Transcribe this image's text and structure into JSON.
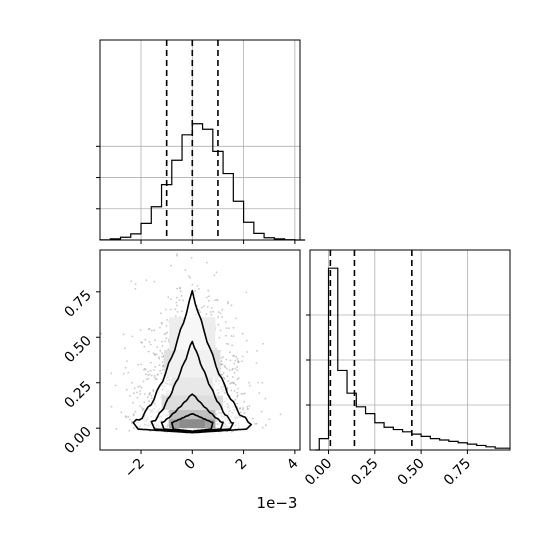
{
  "chart_data": [
    {
      "type": "histogram",
      "panel": "top-left",
      "variable": "x",
      "x_scale_label": "1e−3",
      "xlim": [
        -3.6,
        4.2
      ],
      "x_ticks": [
        -2,
        0,
        2,
        4
      ],
      "quantile_lines": [
        -1.0,
        0.0,
        1.0
      ],
      "grid": true,
      "bins_left": [
        -3.6,
        -3.2,
        -2.8,
        -2.4,
        -2.0,
        -1.6,
        -1.2,
        -0.8,
        -0.4,
        0.0,
        0.4,
        0.8,
        1.2,
        1.6,
        2.0,
        2.4,
        2.8,
        3.2,
        3.6,
        4.0
      ],
      "bin_width": 0.4,
      "counts": [
        0.1,
        1,
        2.5,
        5.5,
        15,
        30,
        50,
        72,
        95,
        105,
        100,
        80,
        60,
        35,
        16,
        6,
        2,
        1,
        0.3,
        0
      ]
    },
    {
      "type": "histogram",
      "panel": "bottom-right",
      "variable": "y",
      "xlim": [
        -0.1,
        0.98
      ],
      "x_ticks": [
        0.0,
        0.25,
        0.5,
        0.75
      ],
      "x_tick_labels": [
        "0.00",
        "0.25",
        "0.50",
        "0.75"
      ],
      "quantile_lines": [
        0.01,
        0.14,
        0.45
      ],
      "grid": true,
      "bins_left": [
        -0.05,
        0.0,
        0.05,
        0.1,
        0.15,
        0.2,
        0.25,
        0.3,
        0.35,
        0.4,
        0.45,
        0.5,
        0.55,
        0.6,
        0.65,
        0.7,
        0.75,
        0.8,
        0.85,
        0.9
      ],
      "bin_width": 0.05,
      "counts": [
        5,
        80,
        35,
        25,
        19,
        16,
        12,
        10,
        9,
        8,
        7,
        6,
        5,
        4.4,
        3.8,
        3.2,
        2.6,
        2,
        1.4,
        0.8
      ]
    },
    {
      "type": "2d-histogram-contour",
      "panel": "bottom-left",
      "x_variable": "x",
      "y_variable": "y",
      "xlim": [
        -3.6,
        4.2
      ],
      "ylim": [
        -0.12,
        0.98
      ],
      "x_ticks": [
        -2,
        0,
        2,
        4
      ],
      "y_ticks": [
        0.0,
        0.25,
        0.5,
        0.75
      ],
      "y_tick_labels": [
        "0.00",
        "0.25",
        "0.50",
        "0.75"
      ],
      "x_scale_label": "1e−3",
      "contour_levels": [
        {
          "peak_y": 0.75,
          "half_width": 2.3
        },
        {
          "peak_y": 0.48,
          "half_width": 1.6
        },
        {
          "peak_y": 0.19,
          "half_width": 1.2
        },
        {
          "peak_y": 0.08,
          "half_width": 0.8
        }
      ],
      "density_cells": [
        {
          "x": -0.9,
          "y": 0.0,
          "w": 0.4,
          "h": 0.05,
          "v": 0.8
        },
        {
          "x": -0.5,
          "y": 0.0,
          "w": 1.0,
          "h": 0.05,
          "v": 1.0
        },
        {
          "x": 0.5,
          "y": 0.0,
          "w": 0.4,
          "h": 0.05,
          "v": 0.8
        },
        {
          "x": -0.9,
          "y": 0.05,
          "w": 1.8,
          "h": 0.05,
          "v": 0.55
        },
        {
          "x": -1.2,
          "y": 0.1,
          "w": 2.4,
          "h": 0.08,
          "v": 0.3
        },
        {
          "x": -0.8,
          "y": 0.18,
          "w": 1.6,
          "h": 0.1,
          "v": 0.2
        },
        {
          "x": -1.1,
          "y": 0.28,
          "w": 2.2,
          "h": 0.15,
          "v": 0.12
        },
        {
          "x": -0.9,
          "y": 0.43,
          "w": 1.8,
          "h": 0.18,
          "v": 0.07
        }
      ]
    }
  ]
}
